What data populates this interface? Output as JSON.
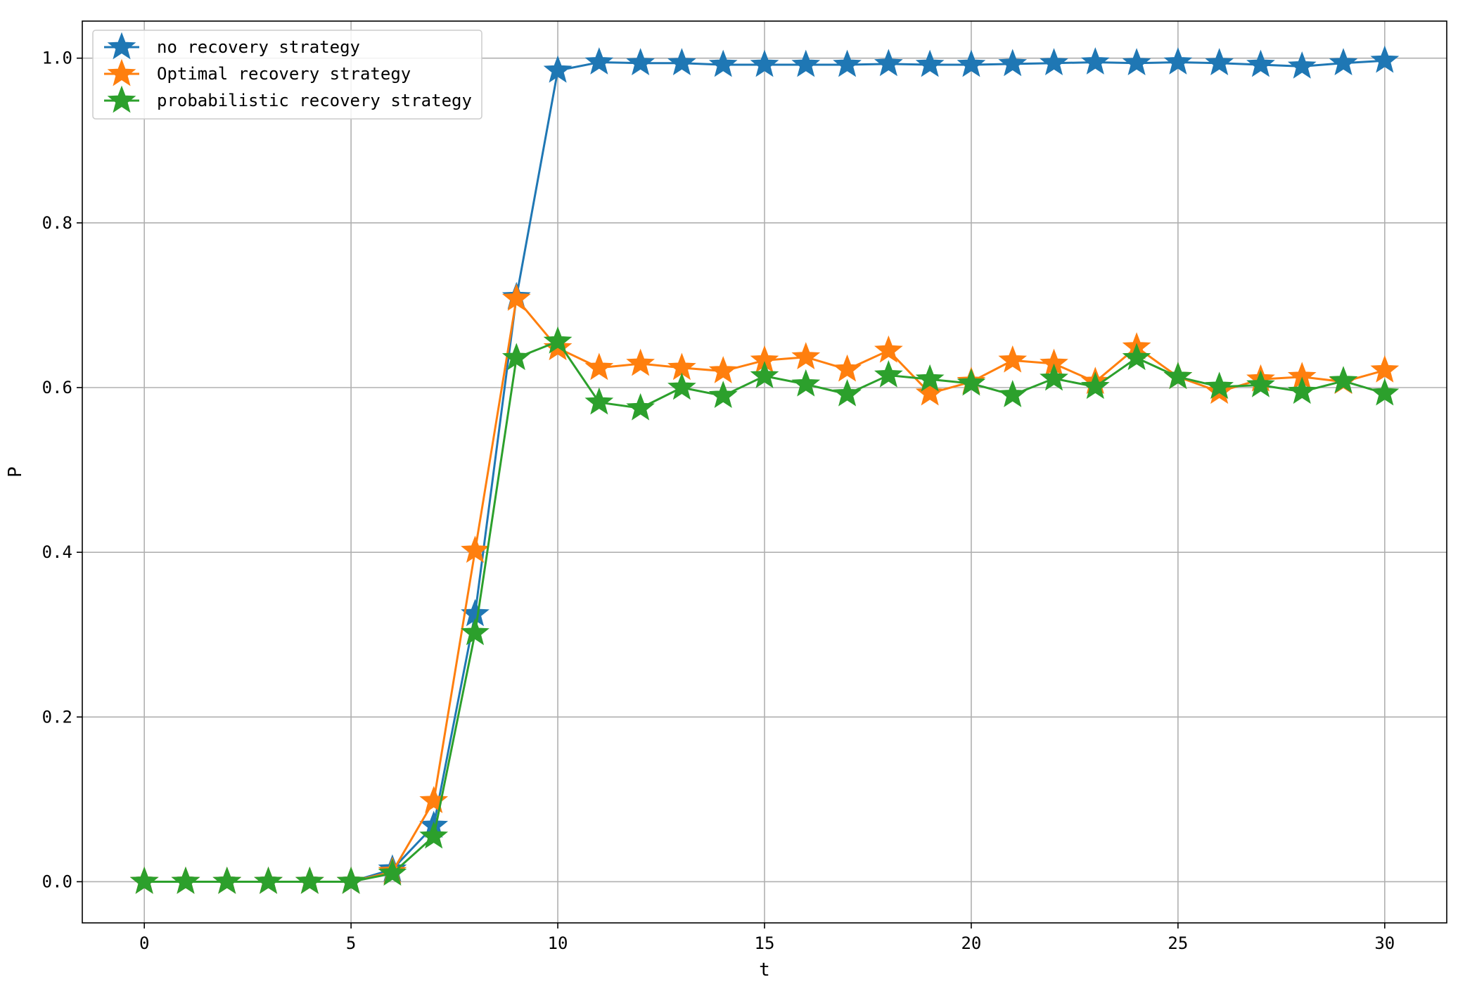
{
  "chart_data": {
    "type": "line",
    "title": "",
    "xlabel": "t",
    "ylabel": "P",
    "xlim": [
      -1.5,
      31.5
    ],
    "ylim": [
      -0.05,
      1.045
    ],
    "xticks": [
      0,
      5,
      10,
      15,
      20,
      25,
      30
    ],
    "xtick_labels": [
      "0",
      "5",
      "10",
      "15",
      "20",
      "25",
      "30"
    ],
    "yticks": [
      0.0,
      0.2,
      0.4,
      0.6,
      0.8,
      1.0
    ],
    "ytick_labels": [
      "0.0",
      "0.2",
      "0.4",
      "0.6",
      "0.8",
      "1.0"
    ],
    "grid": true,
    "legend_position": "upper-left",
    "marker": "star",
    "x": [
      0,
      1,
      2,
      3,
      4,
      5,
      6,
      7,
      8,
      9,
      10,
      11,
      12,
      13,
      14,
      15,
      16,
      17,
      18,
      19,
      20,
      21,
      22,
      23,
      24,
      25,
      26,
      27,
      28,
      29,
      30
    ],
    "series": [
      {
        "name": "no recovery strategy",
        "color": "#1f77b4",
        "values": [
          0,
          0,
          0,
          0,
          0,
          0,
          0.015,
          0.068,
          0.325,
          0.71,
          0.985,
          0.995,
          0.994,
          0.994,
          0.992,
          0.992,
          0.992,
          0.992,
          0.993,
          0.992,
          0.992,
          0.993,
          0.994,
          0.995,
          0.994,
          0.995,
          0.994,
          0.992,
          0.99,
          0.994,
          0.997
        ]
      },
      {
        "name": "Optimal recovery strategy",
        "color": "#ff7f0e",
        "values": [
          0,
          0,
          0,
          0,
          0,
          0,
          0.012,
          0.098,
          0.402,
          0.708,
          0.648,
          0.624,
          0.629,
          0.624,
          0.62,
          0.633,
          0.637,
          0.622,
          0.645,
          0.593,
          0.607,
          0.633,
          0.629,
          0.607,
          0.649,
          0.613,
          0.595,
          0.61,
          0.613,
          0.607,
          0.621
        ]
      },
      {
        "name": "probabilistic recovery strategy",
        "color": "#2ca02c",
        "values": [
          0,
          0,
          0,
          0,
          0,
          0,
          0.01,
          0.055,
          0.302,
          0.636,
          0.656,
          0.582,
          0.575,
          0.6,
          0.59,
          0.614,
          0.604,
          0.592,
          0.615,
          0.61,
          0.605,
          0.591,
          0.611,
          0.601,
          0.636,
          0.613,
          0.601,
          0.603,
          0.595,
          0.608,
          0.593
        ]
      }
    ]
  }
}
